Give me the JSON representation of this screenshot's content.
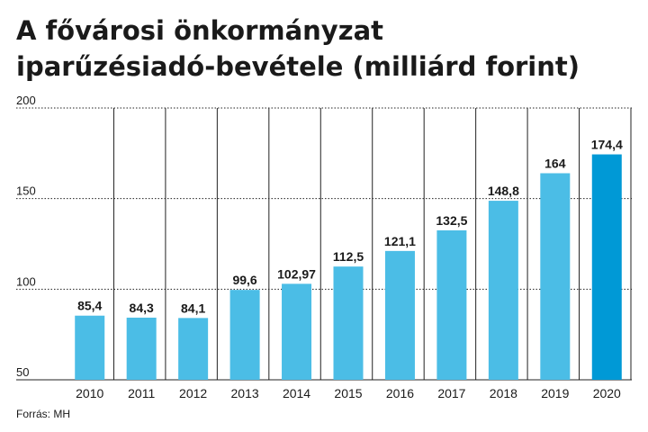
{
  "title_lines": [
    "A fővárosi önkormányzat",
    "iparűzésiadó-bevétele (milliárd forint)"
  ],
  "source": "Forrás: MH",
  "colors": {
    "bar": "#4bbde6",
    "bar_highlight": "#0099d6",
    "grid": "#222222",
    "text": "#1a1a1a"
  },
  "chart_data": {
    "type": "bar",
    "categories": [
      "2010",
      "2011",
      "2012",
      "2013",
      "2014",
      "2015",
      "2016",
      "2017",
      "2018",
      "2019",
      "2020"
    ],
    "values": [
      85.4,
      84.3,
      84.1,
      99.6,
      102.97,
      112.5,
      121.1,
      132.5,
      148.8,
      164,
      174.4
    ],
    "data_labels": [
      "85,4",
      "84,3",
      "84,1",
      "99,6",
      "102,97",
      "112,5",
      "121,1",
      "132,5",
      "148,8",
      "164",
      "174,4"
    ],
    "yticks": [
      50,
      100,
      150,
      200
    ],
    "ylim": [
      50,
      200
    ],
    "highlight_index": 10,
    "grid": true,
    "legend": false
  }
}
